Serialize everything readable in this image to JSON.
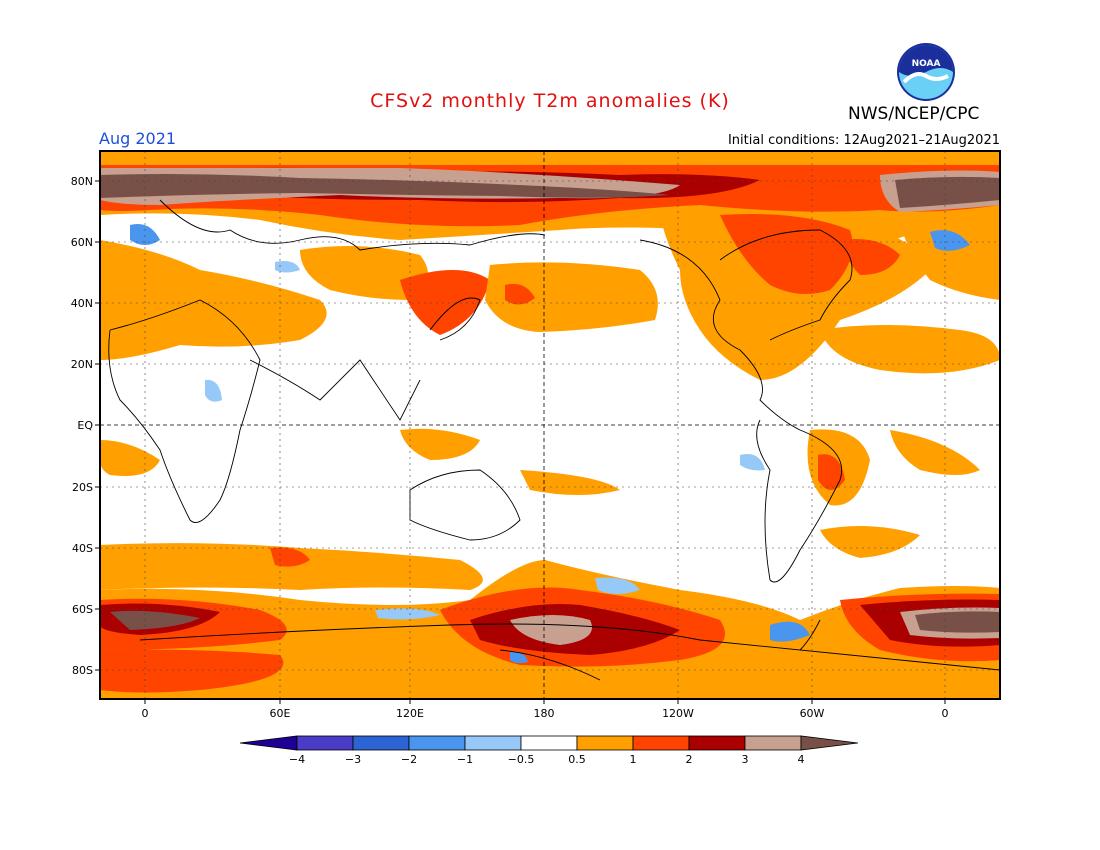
{
  "header": {
    "title": "CFSv2 monthly T2m anomalies (K)",
    "month": "Aug 2021",
    "initial_conditions": "Initial conditions: 12Aug2021–21Aug2021",
    "agency": "NWS/NCEP/CPC",
    "logo_text": "NOAA"
  },
  "map": {
    "lat_labels": [
      "80N",
      "60N",
      "40N",
      "20N",
      "EQ",
      "20S",
      "40S",
      "60S",
      "80S"
    ],
    "lon_labels": [
      "0",
      "60E",
      "120E",
      "180",
      "120W",
      "60W",
      "0"
    ]
  },
  "colorbar": {
    "labels": [
      "−4",
      "−3",
      "−2",
      "−1",
      "−0.5",
      "0.5",
      "1",
      "2",
      "3",
      "4"
    ],
    "colors": [
      "#1e0094",
      "#4b3cc8",
      "#2c64d4",
      "#4a96ee",
      "#96c8f8",
      "#ffffff",
      "#ffa000",
      "#ff4400",
      "#aa0000",
      "#c8a090",
      "#785048"
    ]
  },
  "legend_colors": {
    "neg_strong": "#4a96ee",
    "neg_weak": "#96c8f8",
    "neutral": "#ffffff",
    "pos_05": "#ffa000",
    "pos_1": "#ff4400",
    "pos_2": "#aa0000",
    "pos_3": "#c8a090",
    "pos_4": "#785048"
  }
}
